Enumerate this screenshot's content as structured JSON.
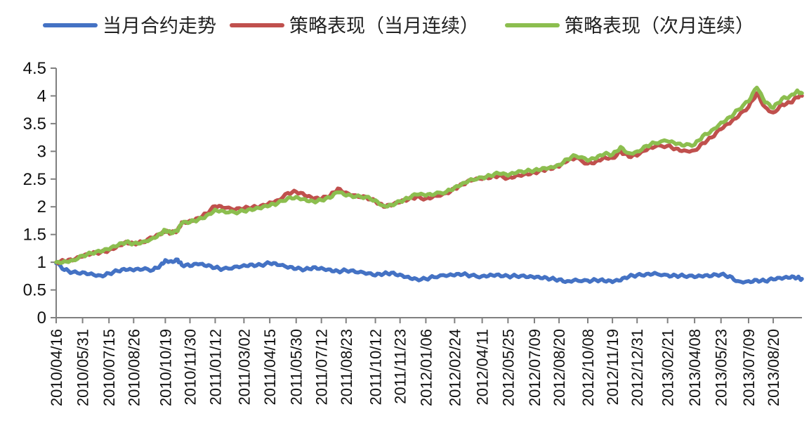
{
  "chart_data": {
    "type": "line",
    "title": "",
    "xlabel": "",
    "ylabel": "",
    "ylim": [
      0,
      4.5
    ],
    "y_ticks": [
      "0",
      "0.5",
      "1",
      "1.5",
      "2",
      "2.5",
      "3",
      "3.5",
      "4",
      "4.5"
    ],
    "grid": false,
    "legend": "top",
    "x_tick_labels": [
      "2010/04/16",
      "2010/05/31",
      "2010/07/15",
      "2010/08/26",
      "2010/10/19",
      "2010/11/30",
      "2011/01/12",
      "2011/03/02",
      "2011/04/15",
      "2011/05/30",
      "2011/07/12",
      "2011/08/23",
      "2011/10/12",
      "2011/11/23",
      "2012/01/06",
      "2012/02/24",
      "2012/04/11",
      "2012/05/25",
      "2012/07/09",
      "2012/08/20",
      "2012/10/08",
      "2012/11/19",
      "2012/12/31",
      "2013/02/21",
      "2013/04/08",
      "2013/05/23",
      "2013/07/09",
      "2013/08/20"
    ],
    "x_range": [
      "2010/04/16",
      "2013/10/08"
    ],
    "series": [
      {
        "name": "当月合约走势",
        "color": "#4472C4",
        "points": [
          [
            "2010/04/16",
            0.98
          ],
          [
            "2010/04/30",
            0.86
          ],
          [
            "2010/05/14",
            0.82
          ],
          [
            "2010/05/31",
            0.82
          ],
          [
            "2010/06/15",
            0.8
          ],
          [
            "2010/07/01",
            0.76
          ],
          [
            "2010/07/15",
            0.8
          ],
          [
            "2010/07/30",
            0.84
          ],
          [
            "2010/08/13",
            0.86
          ],
          [
            "2010/08/26",
            0.85
          ],
          [
            "2010/09/10",
            0.87
          ],
          [
            "2010/09/28",
            0.86
          ],
          [
            "2010/10/11",
            0.95
          ],
          [
            "2010/10/19",
            1.04
          ],
          [
            "2010/10/29",
            1.02
          ],
          [
            "2010/11/09",
            1.05
          ],
          [
            "2010/11/16",
            0.95
          ],
          [
            "2010/11/30",
            0.93
          ],
          [
            "2010/12/14",
            0.96
          ],
          [
            "2010/12/28",
            0.93
          ],
          [
            "2011/01/12",
            0.9
          ],
          [
            "2011/01/25",
            0.88
          ],
          [
            "2011/02/14",
            0.92
          ],
          [
            "2011/03/02",
            0.95
          ],
          [
            "2011/03/16",
            0.96
          ],
          [
            "2011/03/31",
            0.95
          ],
          [
            "2011/04/15",
            0.98
          ],
          [
            "2011/04/28",
            0.95
          ],
          [
            "2011/05/16",
            0.9
          ],
          [
            "2011/05/30",
            0.88
          ],
          [
            "2011/06/14",
            0.87
          ],
          [
            "2011/06/28",
            0.91
          ],
          [
            "2011/07/12",
            0.9
          ],
          [
            "2011/07/27",
            0.87
          ],
          [
            "2011/08/09",
            0.84
          ],
          [
            "2011/08/23",
            0.85
          ],
          [
            "2011/09/08",
            0.82
          ],
          [
            "2011/09/26",
            0.79
          ],
          [
            "2011/10/12",
            0.76
          ],
          [
            "2011/10/26",
            0.79
          ],
          [
            "2011/11/08",
            0.81
          ],
          [
            "2011/11/23",
            0.78
          ],
          [
            "2011/12/07",
            0.74
          ],
          [
            "2011/12/21",
            0.7
          ],
          [
            "2012/01/06",
            0.7
          ],
          [
            "2012/01/20",
            0.73
          ],
          [
            "2012/02/10",
            0.75
          ],
          [
            "2012/02/24",
            0.76
          ],
          [
            "2012/03/09",
            0.78
          ],
          [
            "2012/03/23",
            0.76
          ],
          [
            "2012/04/11",
            0.75
          ],
          [
            "2012/04/25",
            0.78
          ],
          [
            "2012/05/09",
            0.78
          ],
          [
            "2012/05/25",
            0.75
          ],
          [
            "2012/06/08",
            0.75
          ],
          [
            "2012/06/25",
            0.73
          ],
          [
            "2012/07/09",
            0.72
          ],
          [
            "2012/07/23",
            0.71
          ],
          [
            "2012/08/06",
            0.7
          ],
          [
            "2012/08/20",
            0.69
          ],
          [
            "2012/09/03",
            0.66
          ],
          [
            "2012/09/17",
            0.69
          ],
          [
            "2012/10/08",
            0.67
          ],
          [
            "2012/10/22",
            0.68
          ],
          [
            "2012/11/05",
            0.66
          ],
          [
            "2012/11/19",
            0.64
          ],
          [
            "2012/12/03",
            0.67
          ],
          [
            "2012/12/17",
            0.74
          ],
          [
            "2012/12/31",
            0.77
          ],
          [
            "2013/01/16",
            0.79
          ],
          [
            "2013/01/30",
            0.81
          ],
          [
            "2013/02/21",
            0.77
          ],
          [
            "2013/03/07",
            0.76
          ],
          [
            "2013/03/21",
            0.75
          ],
          [
            "2013/04/08",
            0.73
          ],
          [
            "2013/04/22",
            0.74
          ],
          [
            "2013/05/07",
            0.75
          ],
          [
            "2013/05/23",
            0.78
          ],
          [
            "2013/06/07",
            0.75
          ],
          [
            "2013/06/21",
            0.66
          ],
          [
            "2013/07/09",
            0.66
          ],
          [
            "2013/07/23",
            0.68
          ],
          [
            "2013/08/06",
            0.66
          ],
          [
            "2013/08/20",
            0.69
          ],
          [
            "2013/09/04",
            0.7
          ],
          [
            "2013/09/18",
            0.72
          ],
          [
            "2013/09/30",
            0.72
          ],
          [
            "2013/10/08",
            0.7
          ]
        ]
      },
      {
        "name": "策略表现（当月连续）",
        "color": "#C0504D",
        "points": [
          [
            "2010/04/16",
            1.0
          ],
          [
            "2010/04/30",
            1.02
          ],
          [
            "2010/05/14",
            1.03
          ],
          [
            "2010/05/31",
            1.1
          ],
          [
            "2010/06/15",
            1.15
          ],
          [
            "2010/07/01",
            1.18
          ],
          [
            "2010/07/15",
            1.22
          ],
          [
            "2010/07/30",
            1.3
          ],
          [
            "2010/08/13",
            1.37
          ],
          [
            "2010/08/26",
            1.34
          ],
          [
            "2010/09/10",
            1.36
          ],
          [
            "2010/09/28",
            1.44
          ],
          [
            "2010/10/11",
            1.5
          ],
          [
            "2010/10/19",
            1.55
          ],
          [
            "2010/10/29",
            1.52
          ],
          [
            "2010/11/09",
            1.58
          ],
          [
            "2010/11/16",
            1.72
          ],
          [
            "2010/11/30",
            1.75
          ],
          [
            "2010/12/14",
            1.8
          ],
          [
            "2010/12/28",
            1.88
          ],
          [
            "2011/01/12",
            2.01
          ],
          [
            "2011/01/25",
            1.98
          ],
          [
            "2011/02/14",
            1.94
          ],
          [
            "2011/03/02",
            1.97
          ],
          [
            "2011/03/16",
            1.99
          ],
          [
            "2011/03/31",
            2.02
          ],
          [
            "2011/04/15",
            2.08
          ],
          [
            "2011/04/28",
            2.12
          ],
          [
            "2011/05/16",
            2.25
          ],
          [
            "2011/05/30",
            2.27
          ],
          [
            "2011/06/14",
            2.2
          ],
          [
            "2011/06/28",
            2.14
          ],
          [
            "2011/07/12",
            2.14
          ],
          [
            "2011/07/27",
            2.2
          ],
          [
            "2011/08/09",
            2.33
          ],
          [
            "2011/08/23",
            2.26
          ],
          [
            "2011/09/08",
            2.21
          ],
          [
            "2011/09/26",
            2.18
          ],
          [
            "2011/10/12",
            2.1
          ],
          [
            "2011/10/26",
            2.0
          ],
          [
            "2011/11/08",
            2.02
          ],
          [
            "2011/11/23",
            2.08
          ],
          [
            "2011/12/07",
            2.13
          ],
          [
            "2011/12/21",
            2.18
          ],
          [
            "2012/01/06",
            2.15
          ],
          [
            "2012/01/20",
            2.2
          ],
          [
            "2012/02/10",
            2.25
          ],
          [
            "2012/02/24",
            2.33
          ],
          [
            "2012/03/09",
            2.4
          ],
          [
            "2012/03/23",
            2.47
          ],
          [
            "2012/04/11",
            2.5
          ],
          [
            "2012/04/25",
            2.52
          ],
          [
            "2012/05/09",
            2.56
          ],
          [
            "2012/05/25",
            2.52
          ],
          [
            "2012/06/08",
            2.57
          ],
          [
            "2012/06/25",
            2.6
          ],
          [
            "2012/07/09",
            2.62
          ],
          [
            "2012/07/23",
            2.66
          ],
          [
            "2012/08/06",
            2.68
          ],
          [
            "2012/08/20",
            2.72
          ],
          [
            "2012/09/03",
            2.82
          ],
          [
            "2012/09/17",
            2.88
          ],
          [
            "2012/10/08",
            2.78
          ],
          [
            "2012/10/22",
            2.82
          ],
          [
            "2012/11/05",
            2.9
          ],
          [
            "2012/11/19",
            2.88
          ],
          [
            "2012/12/03",
            3.0
          ],
          [
            "2012/12/17",
            2.9
          ],
          [
            "2012/12/31",
            2.92
          ],
          [
            "2013/01/16",
            3.02
          ],
          [
            "2013/01/30",
            3.08
          ],
          [
            "2013/02/21",
            3.1
          ],
          [
            "2013/03/07",
            3.05
          ],
          [
            "2013/03/21",
            3.02
          ],
          [
            "2013/04/08",
            3.02
          ],
          [
            "2013/04/22",
            3.15
          ],
          [
            "2013/05/07",
            3.25
          ],
          [
            "2013/05/23",
            3.4
          ],
          [
            "2013/06/07",
            3.5
          ],
          [
            "2013/06/21",
            3.62
          ],
          [
            "2013/07/09",
            3.8
          ],
          [
            "2013/07/23",
            4.05
          ],
          [
            "2013/08/06",
            3.8
          ],
          [
            "2013/08/20",
            3.7
          ],
          [
            "2013/09/04",
            3.85
          ],
          [
            "2013/09/18",
            3.88
          ],
          [
            "2013/09/30",
            3.97
          ],
          [
            "2013/10/08",
            4.0
          ]
        ]
      },
      {
        "name": "策略表现（次月连续）",
        "color": "#8CBE4F",
        "points": [
          [
            "2010/04/16",
            1.0
          ],
          [
            "2010/04/30",
            1.02
          ],
          [
            "2010/05/14",
            1.04
          ],
          [
            "2010/05/31",
            1.12
          ],
          [
            "2010/06/15",
            1.16
          ],
          [
            "2010/07/01",
            1.19
          ],
          [
            "2010/07/15",
            1.23
          ],
          [
            "2010/07/30",
            1.3
          ],
          [
            "2010/08/13",
            1.36
          ],
          [
            "2010/08/26",
            1.34
          ],
          [
            "2010/09/10",
            1.37
          ],
          [
            "2010/09/28",
            1.44
          ],
          [
            "2010/10/11",
            1.52
          ],
          [
            "2010/10/19",
            1.58
          ],
          [
            "2010/10/29",
            1.52
          ],
          [
            "2010/11/09",
            1.56
          ],
          [
            "2010/11/16",
            1.7
          ],
          [
            "2010/11/30",
            1.72
          ],
          [
            "2010/12/14",
            1.77
          ],
          [
            "2010/12/28",
            1.84
          ],
          [
            "2011/01/12",
            1.95
          ],
          [
            "2011/01/25",
            1.93
          ],
          [
            "2011/02/14",
            1.9
          ],
          [
            "2011/03/02",
            1.92
          ],
          [
            "2011/03/16",
            1.94
          ],
          [
            "2011/03/31",
            1.97
          ],
          [
            "2011/04/15",
            2.02
          ],
          [
            "2011/04/28",
            2.06
          ],
          [
            "2011/05/16",
            2.16
          ],
          [
            "2011/05/30",
            2.18
          ],
          [
            "2011/06/14",
            2.14
          ],
          [
            "2011/06/28",
            2.1
          ],
          [
            "2011/07/12",
            2.12
          ],
          [
            "2011/07/27",
            2.16
          ],
          [
            "2011/08/09",
            2.26
          ],
          [
            "2011/08/23",
            2.2
          ],
          [
            "2011/09/08",
            2.18
          ],
          [
            "2011/09/26",
            2.18
          ],
          [
            "2011/10/12",
            2.12
          ],
          [
            "2011/10/26",
            2.02
          ],
          [
            "2011/11/08",
            2.04
          ],
          [
            "2011/11/23",
            2.1
          ],
          [
            "2011/12/07",
            2.15
          ],
          [
            "2011/12/21",
            2.22
          ],
          [
            "2012/01/06",
            2.2
          ],
          [
            "2012/01/20",
            2.22
          ],
          [
            "2012/02/10",
            2.27
          ],
          [
            "2012/02/24",
            2.35
          ],
          [
            "2012/03/09",
            2.43
          ],
          [
            "2012/03/23",
            2.5
          ],
          [
            "2012/04/11",
            2.53
          ],
          [
            "2012/04/25",
            2.56
          ],
          [
            "2012/05/09",
            2.6
          ],
          [
            "2012/05/25",
            2.56
          ],
          [
            "2012/06/08",
            2.61
          ],
          [
            "2012/06/25",
            2.64
          ],
          [
            "2012/07/09",
            2.66
          ],
          [
            "2012/07/23",
            2.7
          ],
          [
            "2012/08/06",
            2.72
          ],
          [
            "2012/08/20",
            2.76
          ],
          [
            "2012/09/03",
            2.86
          ],
          [
            "2012/09/17",
            2.92
          ],
          [
            "2012/10/08",
            2.83
          ],
          [
            "2012/10/22",
            2.87
          ],
          [
            "2012/11/05",
            2.95
          ],
          [
            "2012/11/19",
            2.94
          ],
          [
            "2012/12/03",
            3.08
          ],
          [
            "2012/12/17",
            2.97
          ],
          [
            "2012/12/31",
            3.0
          ],
          [
            "2013/01/16",
            3.1
          ],
          [
            "2013/01/30",
            3.15
          ],
          [
            "2013/02/21",
            3.18
          ],
          [
            "2013/03/07",
            3.13
          ],
          [
            "2013/03/21",
            3.1
          ],
          [
            "2013/04/08",
            3.12
          ],
          [
            "2013/04/22",
            3.28
          ],
          [
            "2013/05/07",
            3.38
          ],
          [
            "2013/05/23",
            3.52
          ],
          [
            "2013/06/07",
            3.62
          ],
          [
            "2013/06/21",
            3.75
          ],
          [
            "2013/07/09",
            3.9
          ],
          [
            "2013/07/23",
            4.15
          ],
          [
            "2013/08/06",
            3.88
          ],
          [
            "2013/08/20",
            3.78
          ],
          [
            "2013/09/04",
            3.95
          ],
          [
            "2013/09/18",
            4.0
          ],
          [
            "2013/09/30",
            4.1
          ],
          [
            "2013/10/08",
            4.05
          ]
        ]
      }
    ]
  }
}
